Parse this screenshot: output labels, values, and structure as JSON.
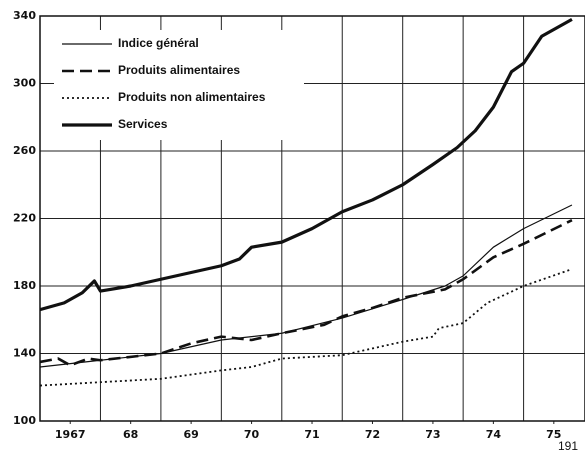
{
  "chart_data": {
    "type": "line",
    "page_number": "191",
    "xlim": [
      1967,
      1975.9
    ],
    "xticks": [
      {
        "value": 1967.5,
        "label": "1967"
      },
      {
        "value": 1968.5,
        "label": "68"
      },
      {
        "value": 1969.5,
        "label": "69"
      },
      {
        "value": 1970.5,
        "label": "70"
      },
      {
        "value": 1971.5,
        "label": "71"
      },
      {
        "value": 1972.5,
        "label": "72"
      },
      {
        "value": 1973.5,
        "label": "73"
      },
      {
        "value": 1974.5,
        "label": "74"
      },
      {
        "value": 1975.5,
        "label": "75"
      }
    ],
    "ylim": [
      100,
      340
    ],
    "yticks": [
      100,
      140,
      180,
      220,
      260,
      300,
      340
    ],
    "grid": true,
    "legend": "upper left",
    "series": [
      {
        "name": "Indice général",
        "color": "#111",
        "width": 1.2,
        "dash": "none",
        "x": [
          1967,
          1968,
          1969,
          1970,
          1971,
          1972,
          1973,
          1973.7,
          1974,
          1974.5,
          1975,
          1975.8
        ],
        "values": [
          132,
          136,
          140,
          148,
          152,
          161,
          172,
          180,
          186,
          203,
          214,
          228
        ]
      },
      {
        "name": "Produits alimentaires",
        "color": "#111",
        "width": 2.6,
        "dash": "12 6",
        "x": [
          1967,
          1967.3,
          1967.5,
          1967.8,
          1968,
          1969,
          1969.5,
          1970,
          1970.5,
          1971,
          1971.7,
          1972,
          1972.5,
          1973,
          1973.7,
          1974,
          1974.5,
          1975,
          1975.8
        ],
        "values": [
          135,
          137,
          133,
          137,
          136,
          140,
          146,
          150,
          148,
          152,
          157,
          162,
          167,
          173,
          178,
          184,
          197,
          205,
          219
        ]
      },
      {
        "name": "Produits non alimentaires",
        "color": "#111",
        "width": 1.8,
        "dash": "2 3",
        "x": [
          1967,
          1968,
          1969,
          1970,
          1970.5,
          1971,
          1972,
          1972.5,
          1973,
          1973.5,
          1973.6,
          1974,
          1974.4,
          1975,
          1975.8
        ],
        "values": [
          121,
          123,
          125,
          130,
          132,
          137,
          139,
          143,
          147,
          150,
          155,
          158,
          170,
          180,
          190
        ]
      },
      {
        "name": "Services",
        "color": "#111",
        "width": 3.2,
        "dash": "none",
        "x": [
          1967,
          1967.4,
          1967.7,
          1967.9,
          1968,
          1968.5,
          1969,
          1969.5,
          1970,
          1970.3,
          1970.5,
          1971,
          1971.5,
          1972,
          1972.5,
          1973,
          1973.5,
          1973.9,
          1974.2,
          1974.5,
          1974.8,
          1975,
          1975.3,
          1975.8
        ],
        "values": [
          166,
          170,
          176,
          183,
          177,
          180,
          184,
          188,
          192,
          196,
          203,
          206,
          214,
          224,
          231,
          240,
          252,
          262,
          272,
          286,
          307,
          312,
          328,
          338
        ]
      }
    ]
  }
}
